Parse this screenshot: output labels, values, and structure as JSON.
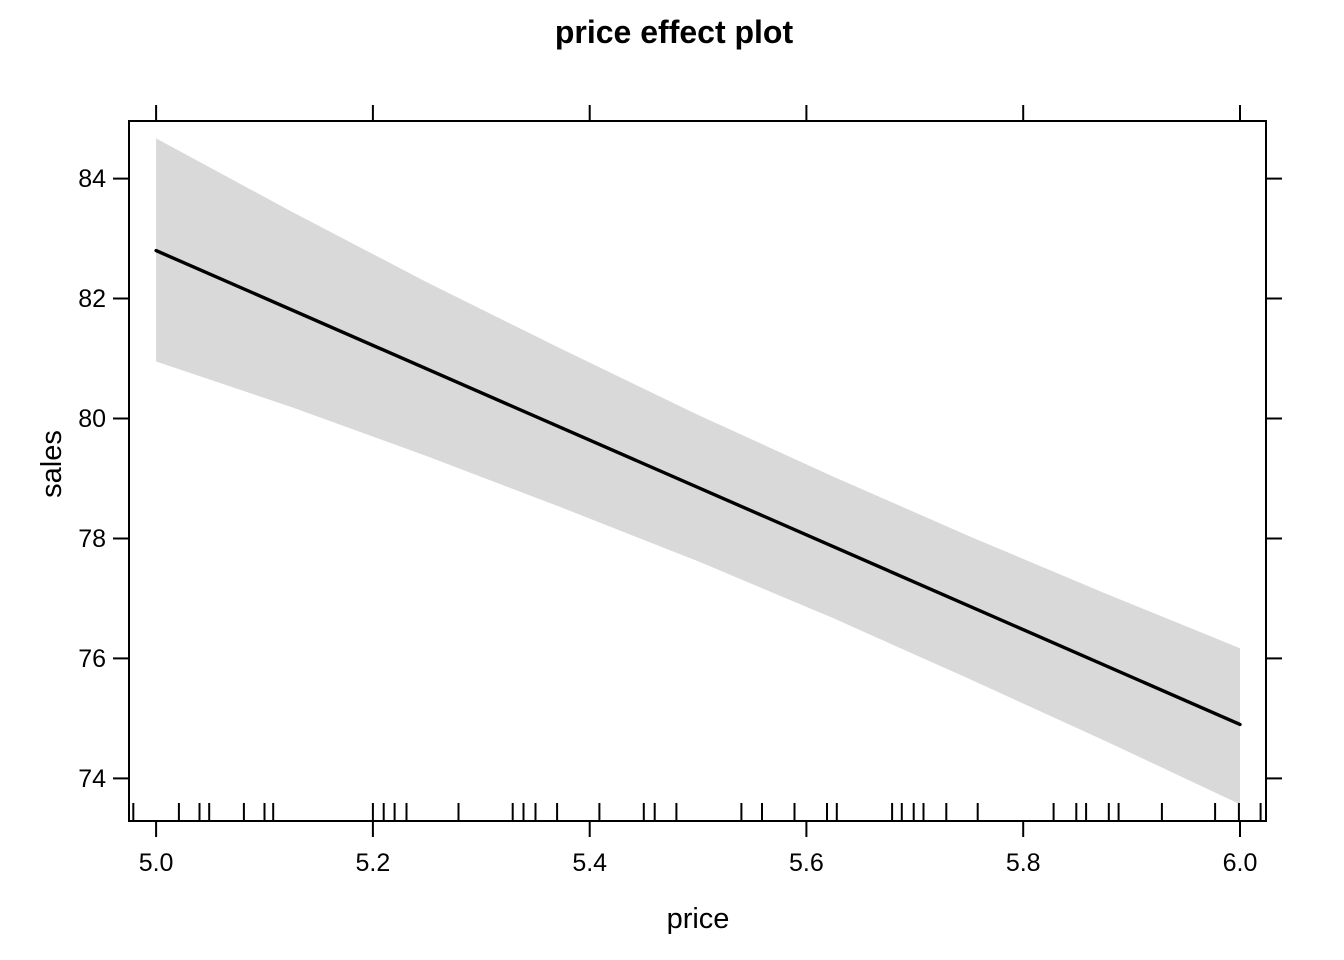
{
  "figure": {
    "background": "#ffffff",
    "foreground": "#000000"
  },
  "chart_data": {
    "type": "line",
    "title": "price effect plot",
    "xlabel": "price",
    "ylabel": "sales",
    "xlim": [
      4.975,
      6.024
    ],
    "ylim": [
      73.29,
      84.96
    ],
    "x_ticks": [
      5.0,
      5.2,
      5.4,
      5.6,
      5.8,
      6.0
    ],
    "x_tick_labels": [
      "5.0",
      "5.2",
      "5.4",
      "5.6",
      "5.8",
      "6.0"
    ],
    "y_ticks": [
      74,
      76,
      78,
      80,
      82,
      84
    ],
    "y_tick_labels": [
      "74",
      "76",
      "78",
      "80",
      "82",
      "84"
    ],
    "grid": false,
    "legend": null,
    "series": [
      {
        "name": "fitted-effect",
        "type": "line",
        "color": "#000000",
        "x": [
          5.0,
          6.0
        ],
        "y": [
          82.8,
          74.9
        ]
      }
    ],
    "confidence_band": {
      "color": "#d9d9d9",
      "x": [
        5.0,
        5.125,
        5.25,
        5.375,
        5.5,
        5.625,
        5.75,
        5.875,
        6.0
      ],
      "upper": [
        84.67,
        83.45,
        82.27,
        81.15,
        80.06,
        79.03,
        78.04,
        77.09,
        76.17
      ],
      "lower": [
        80.95,
        80.19,
        79.37,
        78.51,
        77.62,
        76.67,
        75.66,
        74.63,
        73.57
      ]
    },
    "rug_x": [
      4.979,
      5.021,
      5.04,
      5.049,
      5.081,
      5.1,
      5.108,
      5.2,
      5.21,
      5.22,
      5.231,
      5.279,
      5.329,
      5.339,
      5.35,
      5.37,
      5.409,
      5.45,
      5.46,
      5.48,
      5.54,
      5.559,
      5.589,
      5.619,
      5.628,
      5.679,
      5.688,
      5.699,
      5.708,
      5.729,
      5.758,
      5.828,
      5.849,
      5.858,
      5.879,
      5.888,
      5.928,
      5.977,
      5.999,
      6.019
    ]
  }
}
